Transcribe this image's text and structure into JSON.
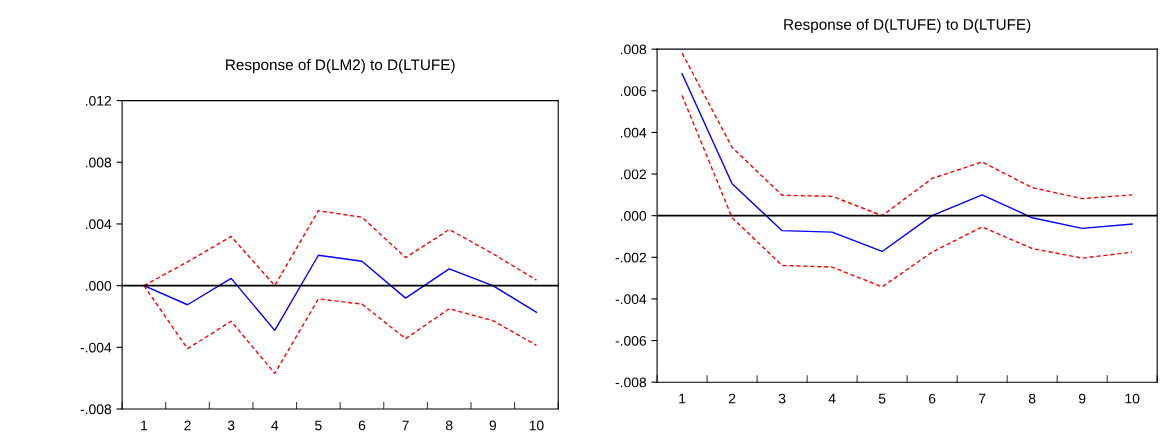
{
  "chart_data": [
    {
      "type": "line",
      "title": "Response of D(LM2) to D(LTUFE)",
      "categories": [
        "1",
        "2",
        "3",
        "4",
        "5",
        "6",
        "7",
        "8",
        "9",
        "10"
      ],
      "series": [
        {
          "color": "#0000ff",
          "line_style": "solid",
          "values": [
            0,
            -0.00124,
            0.00047,
            -0.0029,
            0.00197,
            0.00158,
            -0.00081,
            0.00109,
            0,
            -0.00173
          ]
        },
        {
          "color": "#ff0000",
          "line_style": "dashed",
          "values": [
            0,
            0.00154,
            0.00319,
            0,
            0.00486,
            0.00443,
            0.00182,
            0.00364,
            0.00207,
            0.00036
          ]
        },
        {
          "color": "#ff0000",
          "line_style": "dashed",
          "values": [
            0,
            -0.00409,
            -0.00231,
            -0.00569,
            -0.00086,
            -0.0012,
            -0.00344,
            -0.0015,
            -0.00227,
            -0.00387
          ]
        }
      ],
      "ylim": [
        -0.008,
        0.012
      ],
      "yticks": [
        {
          "value": -0.008,
          "label": "-.008"
        },
        {
          "value": -0.004,
          "label": "-.004"
        },
        {
          "value": 0,
          "label": ".000"
        },
        {
          "value": 0.004,
          "label": ".004"
        },
        {
          "value": 0.008,
          "label": ".008"
        },
        {
          "value": 0.012,
          "label": ".012"
        }
      ],
      "ref_lines": [
        {
          "axis": "y",
          "value": 0,
          "color": "#000000"
        }
      ],
      "marker": "none"
    },
    {
      "type": "line",
      "title": "Response of D(LTUFE) to D(LTUFE)",
      "categories": [
        "1",
        "2",
        "3",
        "4",
        "5",
        "6",
        "7",
        "8",
        "9",
        "10"
      ],
      "series": [
        {
          "color": "#0000ff",
          "line_style": "solid",
          "values": [
            0.00682,
            0.00153,
            -0.00072,
            -0.00079,
            -0.00172,
            0,
            0.001,
            -0.0001,
            -0.00061,
            -0.0004
          ]
        },
        {
          "color": "#ff0000",
          "line_style": "dashed",
          "values": [
            0.00781,
            0.00328,
            0.00098,
            0.00093,
            0,
            0.00179,
            0.00258,
            0.00135,
            0.00082,
            0.001
          ]
        },
        {
          "color": "#ff0000",
          "line_style": "dashed",
          "values": [
            0.00577,
            -0.0001,
            -0.00239,
            -0.00247,
            -0.00342,
            -0.00175,
            -0.00054,
            -0.00158,
            -0.00204,
            -0.00175
          ]
        }
      ],
      "ylim": [
        -0.008,
        0.008
      ],
      "yticks": [
        {
          "value": -0.008,
          "label": "-.008"
        },
        {
          "value": -0.006,
          "label": "-.006"
        },
        {
          "value": -0.004,
          "label": "-.004"
        },
        {
          "value": -0.002,
          "label": "-.002"
        },
        {
          "value": 0,
          "label": ".000"
        },
        {
          "value": 0.002,
          "label": ".002"
        },
        {
          "value": 0.004,
          "label": ".004"
        },
        {
          "value": 0.006,
          "label": ".006"
        },
        {
          "value": 0.008,
          "label": ".008"
        }
      ],
      "ref_lines": [
        {
          "axis": "y",
          "value": 0,
          "color": "#000000"
        }
      ],
      "marker": "none"
    }
  ]
}
